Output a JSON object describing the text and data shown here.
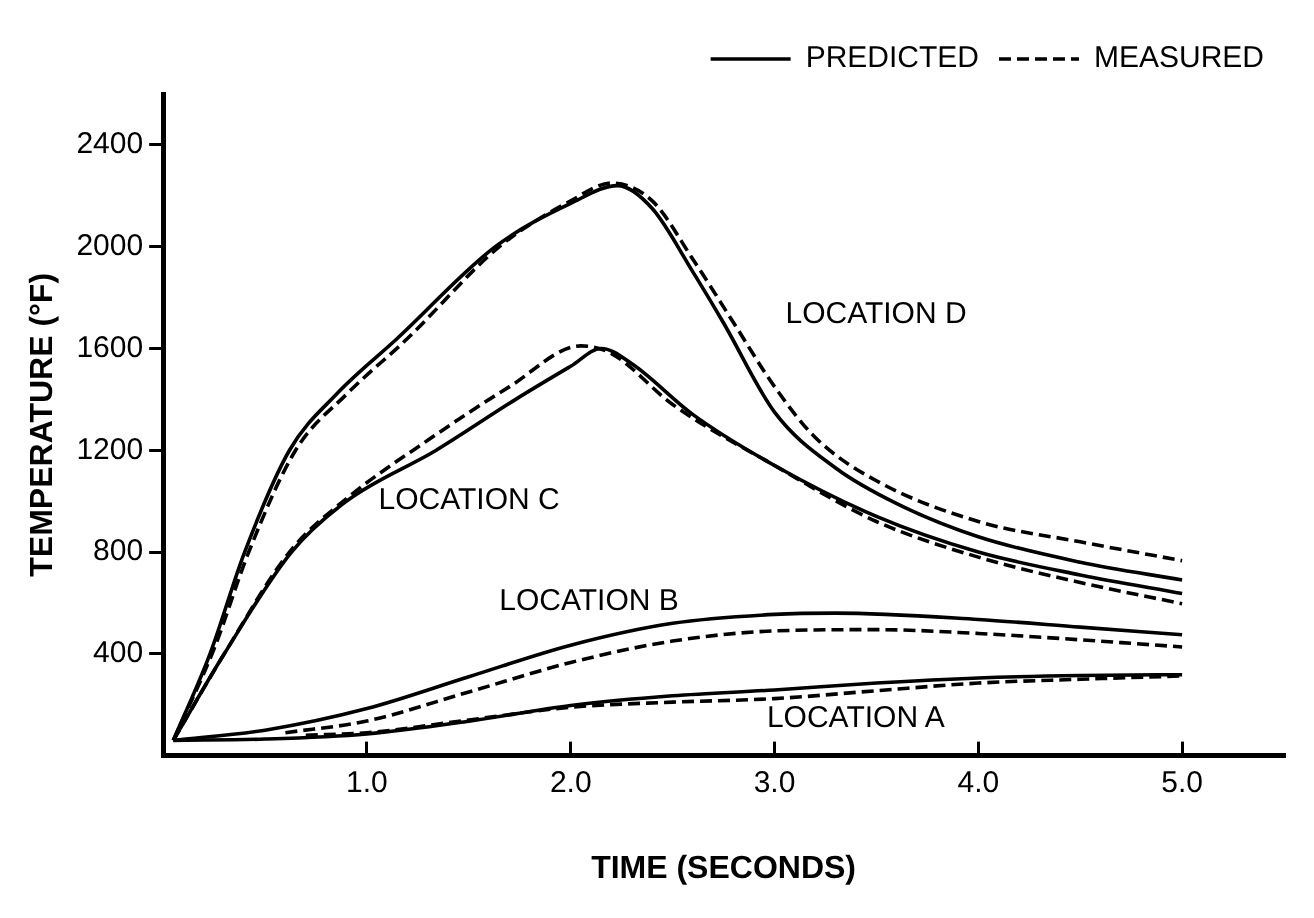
{
  "chart_data": {
    "type": "line",
    "xlabel": "TIME (SECONDS)",
    "ylabel": "TEMPERATURE (°F)",
    "xlim": [
      0,
      5.5
    ],
    "ylim": [
      0,
      2600
    ],
    "xticks": [
      {
        "value": 1,
        "label": "1.0"
      },
      {
        "value": 2,
        "label": "2.0"
      },
      {
        "value": 3,
        "label": "3.0"
      },
      {
        "value": 4,
        "label": "4.0"
      },
      {
        "value": 5,
        "label": "5.0"
      }
    ],
    "yticks": [
      400,
      800,
      1200,
      1600,
      2000,
      2400
    ],
    "grid": false,
    "legend": "top right",
    "marker": "none",
    "series": [
      {
        "name": "PREDICTED",
        "color": "#000000",
        "line_style": "solid",
        "x": [
          0.05,
          0.23,
          0.4,
          0.62,
          0.85,
          1.15,
          1.63,
          2.0,
          2.23,
          2.4,
          2.6,
          2.75,
          3.0,
          3.3,
          3.6,
          4.0,
          4.5,
          5.0
        ],
        "values": [
          60,
          400,
          800,
          1200,
          1420,
          1640,
          2000,
          2170,
          2240,
          2150,
          1900,
          1700,
          1350,
          1130,
          990,
          860,
          760,
          690
        ]
      },
      {
        "name": "MEASURED",
        "color": "#000000",
        "line_style": "dashed",
        "x": [
          0.05,
          0.25,
          0.42,
          0.65,
          0.9,
          1.2,
          1.65,
          2.0,
          2.2,
          2.4,
          2.6,
          2.8,
          3.0,
          3.2,
          3.5,
          4.0,
          4.5,
          5.0
        ],
        "values": [
          60,
          420,
          800,
          1200,
          1420,
          1640,
          2000,
          2180,
          2250,
          2180,
          1950,
          1700,
          1450,
          1250,
          1080,
          920,
          840,
          766
        ]
      },
      {
        "color": "#000000",
        "line_style": "solid",
        "x": [
          0.05,
          0.3,
          0.63,
          0.9,
          1.34,
          1.73,
          2.0,
          2.15,
          2.3,
          2.6,
          3.0,
          3.5,
          4.0,
          4.5,
          5.0
        ],
        "values": [
          60,
          400,
          800,
          1000,
          1200,
          1400,
          1530,
          1600,
          1540,
          1340,
          1140,
          940,
          800,
          710,
          637
        ]
      },
      {
        "color": "#000000",
        "line_style": "dashed",
        "x": [
          0.05,
          0.3,
          0.62,
          0.9,
          1.3,
          1.7,
          2.05,
          2.2,
          2.5,
          3.0,
          3.5,
          4.0,
          4.5,
          5.0
        ],
        "values": [
          60,
          400,
          800,
          1010,
          1240,
          1450,
          1610,
          1580,
          1380,
          1140,
          920,
          780,
          680,
          597
        ]
      },
      {
        "color": "#000000",
        "line_style": "solid",
        "x": [
          0.05,
          0.5,
          1.0,
          1.5,
          2.0,
          2.5,
          3.0,
          3.3,
          4.0,
          4.5,
          5.0
        ],
        "values": [
          60,
          100,
          185,
          310,
          434,
          520,
          555,
          560,
          535,
          505,
          475
        ]
      },
      {
        "color": "#000000",
        "line_style": "dashed",
        "x": [
          0.6,
          1.0,
          1.5,
          2.0,
          2.5,
          3.0,
          3.5,
          4.0,
          4.5,
          5.0
        ],
        "values": [
          90,
          136,
          250,
          366,
          450,
          490,
          495,
          480,
          455,
          427
        ]
      },
      {
        "color": "#000000",
        "line_style": "solid",
        "x": [
          0.05,
          0.5,
          1.0,
          1.5,
          2.0,
          2.5,
          3.0,
          3.5,
          4.0,
          4.5,
          5.0
        ],
        "values": [
          60,
          65,
          85,
          135,
          197,
          235,
          258,
          285,
          305,
          315,
          318
        ]
      },
      {
        "color": "#000000",
        "line_style": "dashed",
        "x": [
          0.7,
          1.0,
          1.5,
          2.0,
          2.5,
          3.0,
          3.5,
          4.0,
          4.5,
          5.0
        ],
        "values": [
          80,
          90,
          140,
          190,
          210,
          224,
          255,
          285,
          300,
          313
        ]
      }
    ],
    "annotations": [
      "LOCATION D",
      "LOCATION C",
      "LOCATION B",
      "LOCATION A"
    ]
  }
}
